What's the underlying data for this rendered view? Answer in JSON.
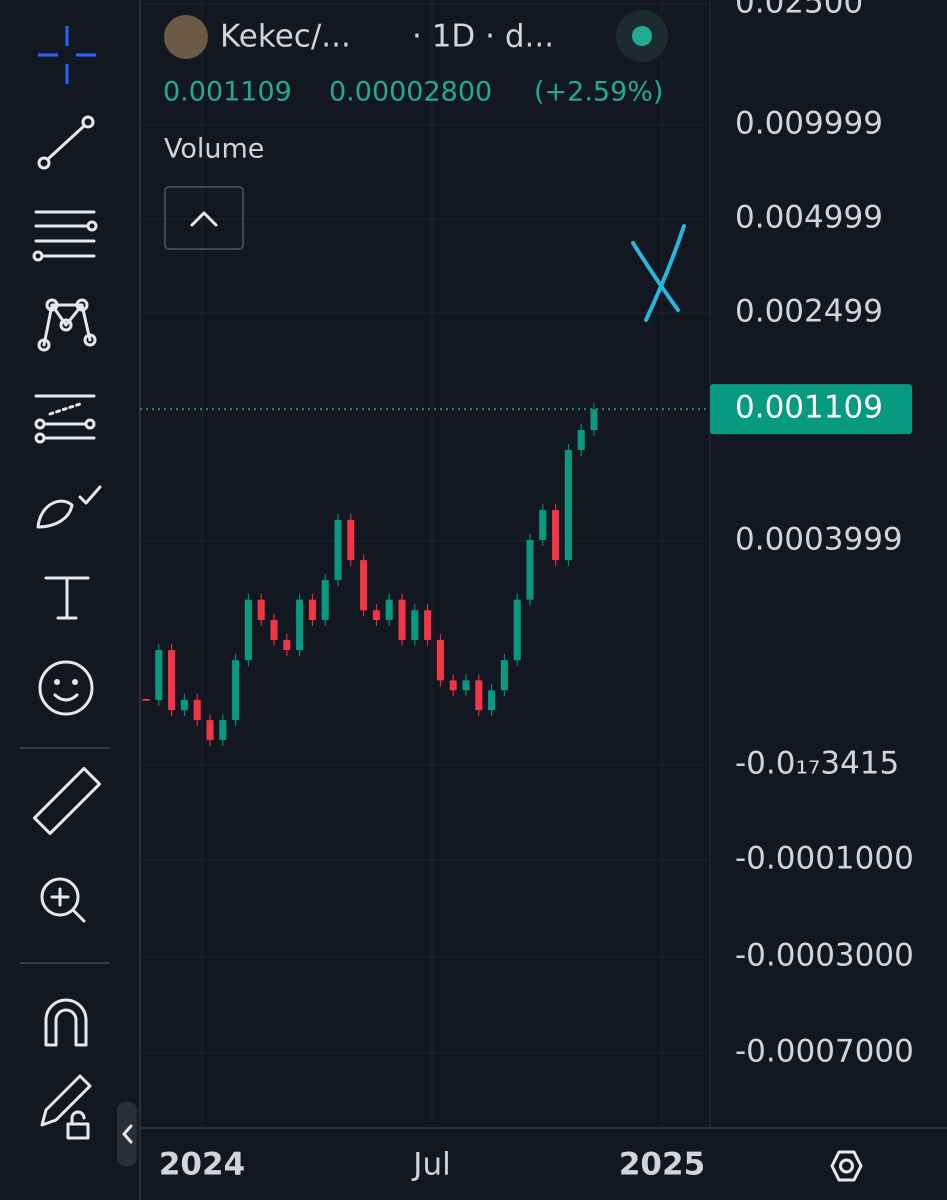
{
  "header": {
    "symbol": "Kekec/...",
    "interval": "· 1D · d...",
    "last": "0.001109",
    "change": "0.00002800",
    "change_pct": "(+2.59%)"
  },
  "indicator": "Volume",
  "price_axis": [
    "0.02500",
    "0.009999",
    "0.004999",
    "0.002499",
    "0.0003999",
    "-0.0₁₇3415",
    "-0.0001000",
    "-0.0003000",
    "-0.0007000"
  ],
  "current_price": "0.001109",
  "time_axis": [
    "2024",
    "Jul",
    "2025"
  ],
  "chart": {
    "type": "candlestick",
    "log_scale": true,
    "up_color": "#089981",
    "down_color": "#f23645",
    "closes": [
      0.000117,
      0.000172,
      0.000108,
      0.000117,
      0.0001,
      8.58e-05,
      0.0001,
      0.000159,
      0.000254,
      0.000217,
      0.000186,
      0.000172,
      0.000254,
      0.000217,
      0.000296,
      0.000471,
      0.000345,
      0.000234,
      0.000217,
      0.000254,
      0.000186,
      0.000234,
      0.000186,
      0.000136,
      0.000126,
      0.000136,
      0.000108,
      0.000126,
      0.000159,
      0.000254,
      0.000403,
      0.000508,
      0.000345,
      0.000809,
      0.000944,
      0.001109
    ]
  }
}
